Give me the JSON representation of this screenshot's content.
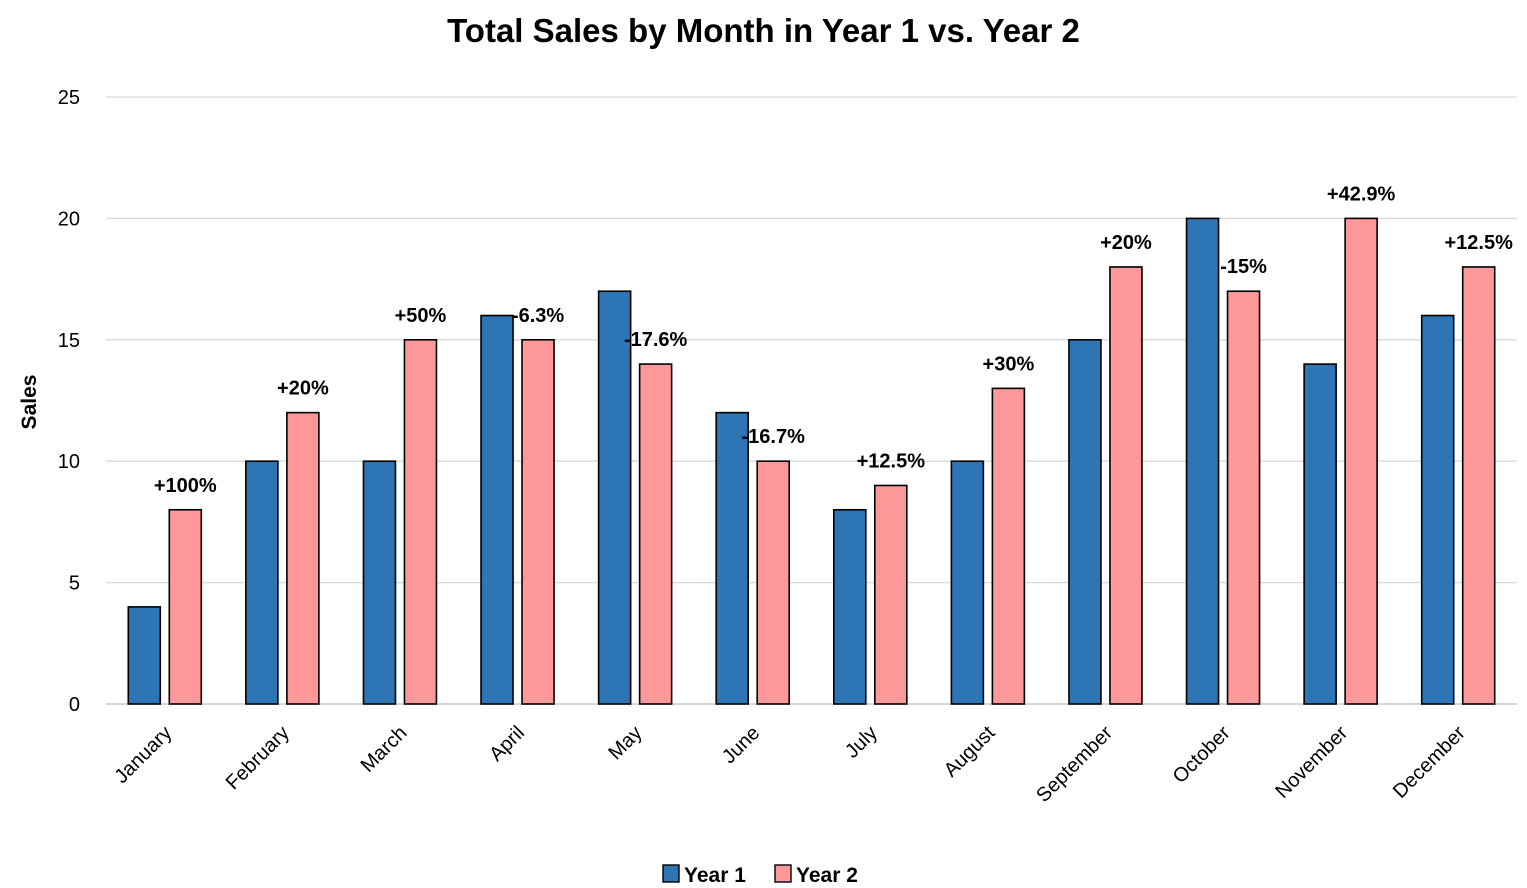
{
  "chart_data": {
    "type": "bar",
    "title": "Total Sales by Month in Year 1 vs. Year 2",
    "ylabel": "Sales",
    "xlabel": "",
    "ylim": [
      0,
      25
    ],
    "yticks": [
      "0",
      "5",
      "10",
      "15",
      "20",
      "25"
    ],
    "grid": true,
    "legend_position": "bottom",
    "categories": [
      "January",
      "February",
      "March",
      "April",
      "May",
      "June",
      "July",
      "August",
      "September",
      "October",
      "November",
      "December"
    ],
    "series": [
      {
        "name": "Year 1",
        "color": "#2E75B6",
        "values": [
          4,
          10,
          10,
          16,
          17,
          12,
          8,
          10,
          15,
          20,
          14,
          16
        ]
      },
      {
        "name": "Year 2",
        "color": "#FF9999",
        "values": [
          8,
          12,
          15,
          15,
          14,
          10,
          9,
          13,
          18,
          17,
          20,
          18
        ]
      }
    ],
    "annotations": [
      "+100%",
      "+20%",
      "+50%",
      "-6.3%",
      "-17.6%",
      "-16.7%",
      "+12.5%",
      "+30%",
      "+20%",
      "-15%",
      "+42.9%",
      "+12.5%"
    ]
  }
}
